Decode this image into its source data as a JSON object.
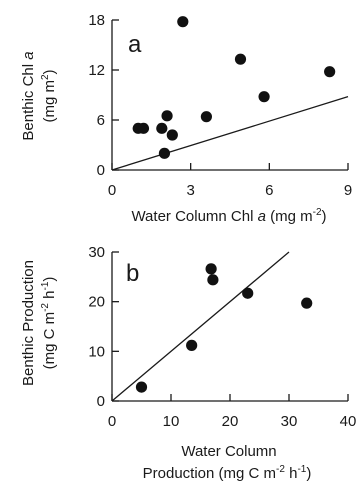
{
  "chart_data": [
    {
      "type": "scatter",
      "panel_label": "a",
      "xlabel": "Water Column Chl",
      "xlabel_var": "a",
      "xlabel_unit_open": " (mg m",
      "xlabel_unit_sup": "-2",
      "xlabel_unit_close": ")",
      "ylabel_line1": "Benthic Chl",
      "ylabel_var": "a",
      "ylabel_line2_open": "(mg m",
      "ylabel_line2_sup": "2",
      "ylabel_line2_close": ")",
      "xlim": [
        0,
        9
      ],
      "ylim": [
        0,
        18
      ],
      "xticks": [
        0,
        3,
        6,
        9
      ],
      "yticks": [
        0,
        6,
        12,
        18
      ],
      "points": [
        {
          "x": 1.0,
          "y": 5.0
        },
        {
          "x": 1.2,
          "y": 5.0
        },
        {
          "x": 1.9,
          "y": 5.0
        },
        {
          "x": 2.0,
          "y": 2.0
        },
        {
          "x": 2.1,
          "y": 6.5
        },
        {
          "x": 2.3,
          "y": 4.2
        },
        {
          "x": 2.7,
          "y": 17.8
        },
        {
          "x": 3.6,
          "y": 6.4
        },
        {
          "x": 4.9,
          "y": 13.3
        },
        {
          "x": 5.8,
          "y": 8.8
        },
        {
          "x": 8.3,
          "y": 11.8
        }
      ],
      "fit_line": {
        "x": [
          0,
          9
        ],
        "y": [
          0,
          8.8
        ]
      }
    },
    {
      "type": "scatter",
      "panel_label": "b",
      "xlabel_line1": "Water Column",
      "xlabel_line2_open": "Production (mg C m",
      "xlabel_line2_sup1": "-2",
      "xlabel_line2_mid": " h",
      "xlabel_line2_sup2": "-1",
      "xlabel_line2_close": ")",
      "ylabel_line1": "Benthic Production",
      "ylabel_line2_open": "(mg C m",
      "ylabel_line2_sup1": "-2",
      "ylabel_line2_mid": " h",
      "ylabel_line2_sup2": "-1",
      "ylabel_line2_close": ")",
      "xlim": [
        0,
        40
      ],
      "ylim": [
        0,
        30
      ],
      "xticks": [
        0,
        10,
        20,
        30,
        40
      ],
      "yticks": [
        0,
        10,
        20,
        30
      ],
      "points": [
        {
          "x": 5.0,
          "y": 2.8
        },
        {
          "x": 13.5,
          "y": 11.2
        },
        {
          "x": 16.8,
          "y": 26.6
        },
        {
          "x": 17.1,
          "y": 24.4
        },
        {
          "x": 23.0,
          "y": 21.7
        },
        {
          "x": 33.0,
          "y": 19.7
        }
      ],
      "fit_line": {
        "x": [
          0,
          30
        ],
        "y": [
          0,
          30
        ]
      }
    }
  ]
}
